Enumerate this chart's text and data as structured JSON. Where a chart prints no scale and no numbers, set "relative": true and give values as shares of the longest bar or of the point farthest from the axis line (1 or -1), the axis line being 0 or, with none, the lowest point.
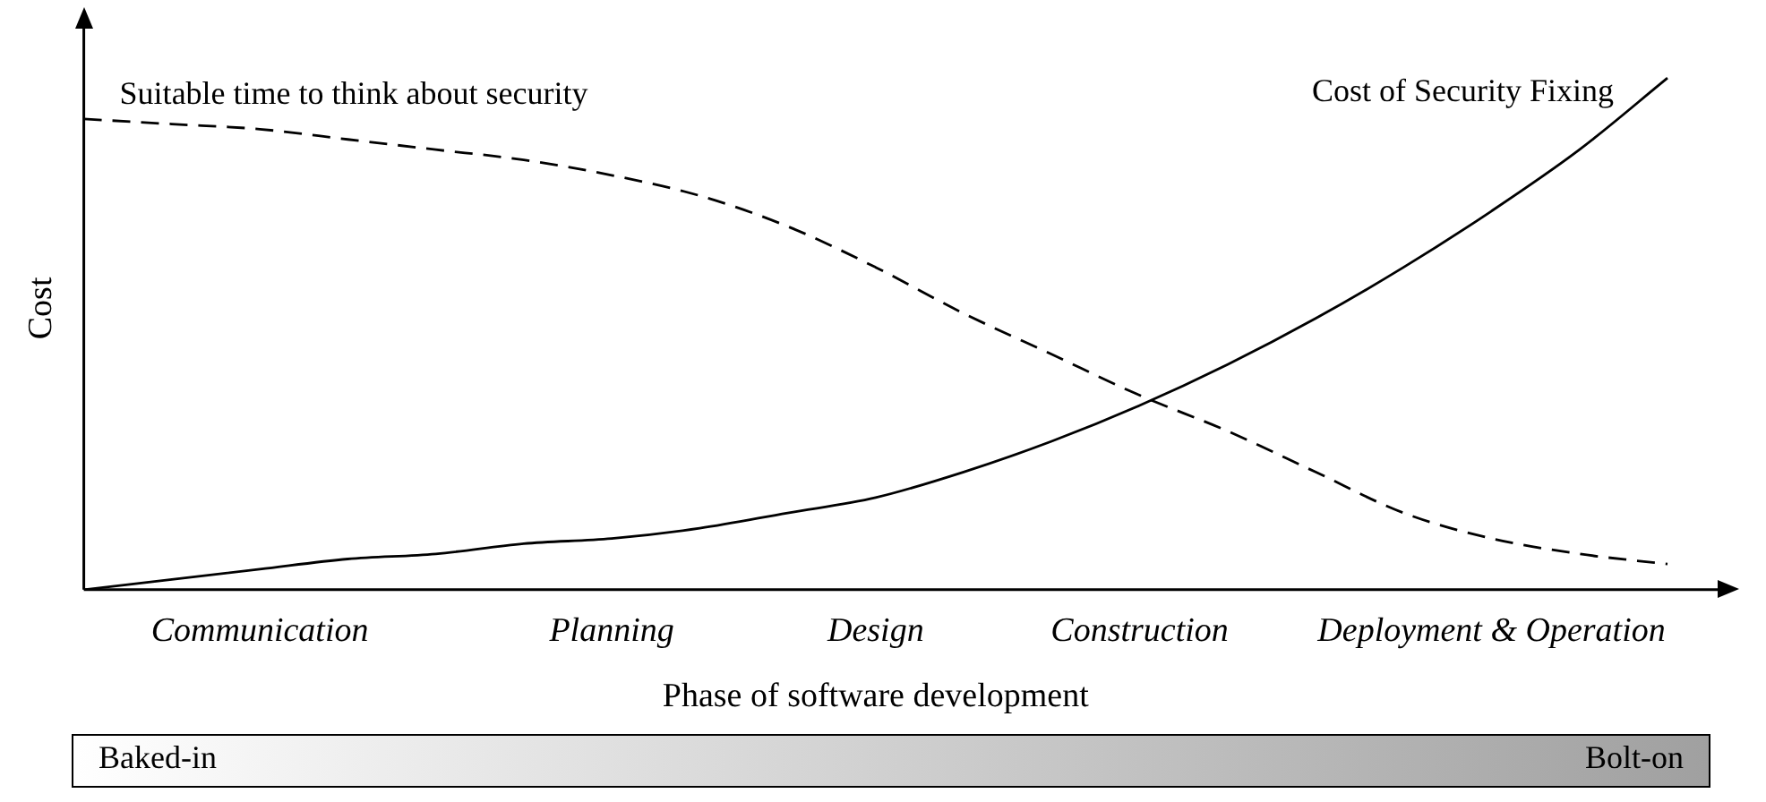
{
  "chart_data": {
    "type": "line",
    "relative": true,
    "xlabel": "Phase of software development",
    "ylabel": "Cost",
    "categories": [
      null,
      null,
      "Communication",
      null,
      null,
      null,
      "Planning",
      null,
      null,
      "Design",
      null,
      null,
      "Construction",
      null,
      null,
      null,
      "Deployment & Operation",
      null,
      null
    ],
    "series": [
      {
        "name": "Suitable time to think about security",
        "color": "#000000",
        "line_style": "dashed",
        "values": [
          0.92,
          0.91,
          0.9,
          0.88,
          0.86,
          0.84,
          0.81,
          0.77,
          0.71,
          0.63,
          0.54,
          0.46,
          0.38,
          0.31,
          0.23,
          0.15,
          0.1,
          0.07,
          0.05
        ]
      },
      {
        "name": "Cost of Security Fixing",
        "color": "#000000",
        "line_style": "solid",
        "values": [
          0,
          0.02,
          0.04,
          0.06,
          0.07,
          0.09,
          0.1,
          0.12,
          0.15,
          0.18,
          0.23,
          0.29,
          0.36,
          0.44,
          0.53,
          0.63,
          0.74,
          0.86,
          1
        ]
      }
    ],
    "annotations": [
      "Baked-in",
      "Bolt-on"
    ],
    "grid": false,
    "legend": false,
    "marker": "none"
  }
}
